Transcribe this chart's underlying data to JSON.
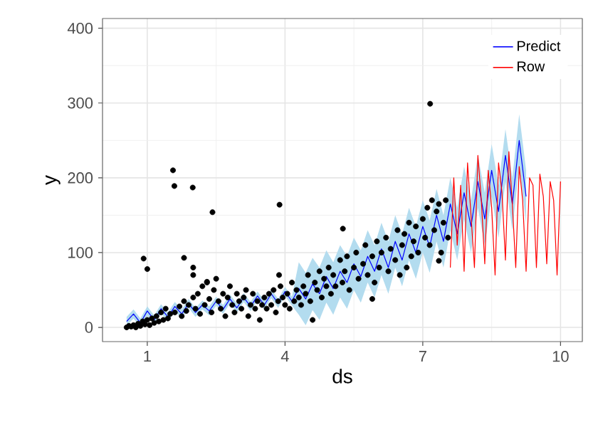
{
  "chart_data": {
    "type": "line",
    "xlabel": "ds",
    "ylabel": "y",
    "xlim": [
      0.025,
      10.475
    ],
    "ylim": [
      -19,
      413
    ],
    "xticks": [
      1,
      4,
      7,
      10
    ],
    "yticks": [
      0,
      100,
      200,
      300,
      400
    ],
    "grid": true,
    "legend": "top right",
    "series": [
      {
        "name": "Predict",
        "color": "#0000ff",
        "x": [
          0.55,
          0.7,
          0.85,
          1.0,
          1.15,
          1.3,
          1.45,
          1.6,
          1.75,
          1.9,
          2.05,
          2.2,
          2.35,
          2.5,
          2.65,
          2.8,
          2.95,
          3.1,
          3.25,
          3.4,
          3.55,
          3.7,
          3.85,
          4.0,
          4.15,
          4.3,
          4.45,
          4.6,
          4.75,
          4.9,
          5.05,
          5.2,
          5.35,
          5.5,
          5.65,
          5.8,
          5.95,
          6.1,
          6.25,
          6.4,
          6.55,
          6.7,
          6.85,
          7.0,
          7.15,
          7.3,
          7.45,
          7.6,
          7.75,
          7.9,
          8.05,
          8.2,
          8.35,
          8.5,
          8.65,
          8.8,
          8.95,
          9.1,
          9.25
        ],
        "values": [
          8,
          18,
          6,
          22,
          10,
          25,
          14,
          28,
          18,
          32,
          20,
          30,
          22,
          35,
          24,
          38,
          26,
          40,
          28,
          42,
          30,
          45,
          32,
          48,
          35,
          52,
          38,
          58,
          45,
          68,
          52,
          75,
          60,
          85,
          68,
          95,
          75,
          105,
          80,
          115,
          90,
          125,
          100,
          135,
          108,
          150,
          115,
          165,
          125,
          180,
          135,
          195,
          145,
          210,
          155,
          230,
          165,
          250,
          175
        ],
        "lower": [
          2,
          12,
          0,
          16,
          4,
          19,
          8,
          22,
          12,
          26,
          14,
          24,
          16,
          29,
          18,
          32,
          20,
          34,
          22,
          36,
          24,
          39,
          26,
          42,
          29,
          17,
          3,
          23,
          10,
          33,
          17,
          40,
          25,
          50,
          33,
          60,
          40,
          70,
          45,
          80,
          55,
          90,
          65,
          100,
          73,
          115,
          80,
          130,
          90,
          145,
          100,
          160,
          110,
          175,
          120,
          195,
          130,
          215,
          140
        ],
        "upper": [
          14,
          24,
          12,
          28,
          16,
          31,
          20,
          34,
          24,
          38,
          26,
          36,
          28,
          41,
          30,
          44,
          32,
          46,
          34,
          48,
          36,
          51,
          38,
          54,
          41,
          87,
          73,
          93,
          80,
          103,
          87,
          110,
          95,
          120,
          103,
          130,
          110,
          140,
          115,
          150,
          125,
          160,
          135,
          170,
          143,
          185,
          150,
          200,
          160,
          215,
          170,
          230,
          180,
          245,
          190,
          265,
          200,
          285,
          210
        ]
      },
      {
        "name": "Row",
        "color": "#ff0000",
        "x": [
          7.6,
          7.675,
          7.75,
          7.825,
          7.9,
          7.975,
          8.05,
          8.125,
          8.2,
          8.275,
          8.35,
          8.425,
          8.5,
          8.575,
          8.65,
          8.725,
          8.8,
          8.875,
          8.95,
          9.025,
          9.1,
          9.175,
          9.25,
          9.325,
          9.4,
          9.475,
          9.55,
          9.625,
          9.7,
          9.775,
          9.85,
          9.925,
          10.0
        ],
        "values": [
          80,
          200,
          110,
          190,
          75,
          220,
          150,
          80,
          230,
          170,
          85,
          210,
          160,
          70,
          220,
          180,
          90,
          235,
          165,
          80,
          215,
          170,
          75,
          200,
          190,
          80,
          205,
          175,
          85,
          195,
          170,
          70,
          195
        ]
      },
      {
        "type": "scatter",
        "color": "#000000",
        "marker": "circle",
        "x": [
          0.55,
          0.6,
          0.65,
          0.7,
          0.75,
          0.8,
          0.85,
          0.9,
          0.95,
          1.0,
          1.05,
          1.1,
          1.15,
          1.2,
          1.25,
          1.3,
          1.35,
          1.4,
          1.45,
          1.5,
          0.92,
          1.0,
          1.56,
          1.59,
          1.99,
          2.42,
          1.6,
          1.7,
          1.75,
          1.8,
          1.85,
          1.9,
          2.0,
          2.05,
          2.1,
          2.15,
          2.2,
          2.25,
          2.3,
          2.35,
          2.4,
          2.45,
          2.5,
          2.55,
          2.6,
          2.65,
          2.7,
          2.75,
          2.8,
          2.85,
          2.9,
          2.95,
          3.0,
          3.05,
          3.1,
          3.15,
          3.2,
          3.25,
          3.3,
          3.35,
          3.4,
          3.45,
          3.5,
          1.8,
          2.0,
          2.0,
          2.3,
          3.88,
          3.87,
          3.55,
          3.6,
          3.65,
          3.7,
          3.75,
          3.8,
          3.85,
          3.9,
          3.95,
          4.0,
          4.05,
          4.1,
          4.15,
          4.2,
          4.25,
          4.3,
          4.35,
          4.4,
          4.45,
          4.5,
          4.55,
          4.6,
          4.65,
          4.7,
          4.75,
          4.8,
          4.85,
          4.9,
          4.95,
          5.0,
          5.05,
          5.1,
          5.2,
          5.25,
          5.3,
          5.35,
          5.4,
          5.5,
          5.55,
          5.6,
          5.7,
          5.75,
          5.8,
          5.9,
          5.95,
          6.0,
          6.05,
          6.1,
          6.2,
          6.25,
          6.3,
          6.4,
          6.45,
          6.5,
          6.55,
          6.6,
          6.65,
          6.7,
          6.75,
          6.8,
          6.85,
          6.9,
          7.0,
          7.05,
          7.1,
          7.15,
          7.16,
          7.2,
          7.25,
          7.3,
          7.35,
          7.4,
          7.45,
          7.5,
          7.55,
          5.9,
          5.26,
          7.35
        ],
        "values": [
          0,
          2,
          1,
          3,
          0,
          5,
          2,
          8,
          4,
          10,
          3,
          12,
          6,
          15,
          8,
          20,
          10,
          25,
          12,
          18,
          92,
          78,
          210,
          189,
          187,
          154,
          20,
          28,
          15,
          35,
          22,
          30,
          40,
          25,
          45,
          18,
          55,
          30,
          60,
          38,
          20,
          50,
          65,
          35,
          25,
          45,
          15,
          40,
          55,
          30,
          20,
          45,
          35,
          25,
          40,
          50,
          15,
          30,
          45,
          25,
          35,
          10,
          30,
          93,
          80,
          70,
          61,
          164,
          70,
          40,
          25,
          45,
          30,
          50,
          20,
          35,
          55,
          40,
          30,
          45,
          25,
          60,
          35,
          50,
          40,
          30,
          55,
          45,
          70,
          35,
          10,
          60,
          50,
          75,
          40,
          65,
          55,
          80,
          45,
          70,
          55,
          90,
          60,
          75,
          95,
          50,
          80,
          100,
          65,
          85,
          110,
          70,
          95,
          60,
          115,
          80,
          100,
          120,
          75,
          105,
          90,
          130,
          70,
          110,
          125,
          80,
          140,
          95,
          115,
          135,
          100,
          145,
          120,
          160,
          110,
          299,
          170,
          130,
          155,
          165,
          100,
          140,
          170,
          120,
          38,
          132,
          89
        ]
      }
    ]
  }
}
